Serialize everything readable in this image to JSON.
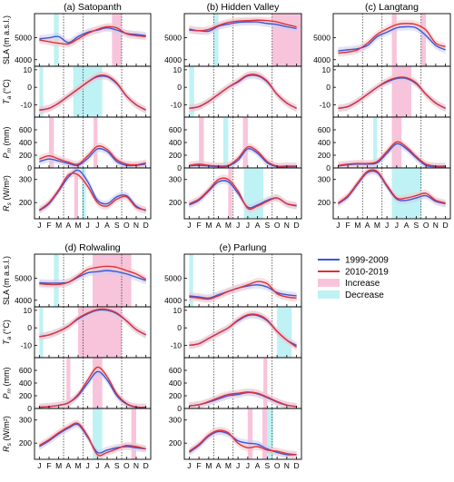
{
  "figure": {
    "legend": {
      "items": [
        {
          "label": "1999-2009",
          "kind": "line",
          "color": "#3b57d9"
        },
        {
          "label": "2010-2019",
          "kind": "line",
          "color": "#e0303a"
        },
        {
          "label": "Increase",
          "kind": "patch",
          "color": "#f8c4dc"
        },
        {
          "label": "Decrease",
          "kind": "patch",
          "color": "#bff2f4"
        }
      ]
    },
    "row_labels": {
      "sla": "SLA (m a.s.l.)",
      "ta_main": "T",
      "ta_sub": "a",
      "ta_unit": " (°C)",
      "pm_main": "P",
      "pm_sub": "m",
      "pm_unit": " (mm)",
      "rs_main": "R",
      "rs_sub": "s",
      "rs_unit": " (W/m²)"
    },
    "month_labels": [
      "J",
      "F",
      "M",
      "A",
      "M",
      "J",
      "J",
      "A",
      "S",
      "O",
      "N",
      "D"
    ],
    "colors": {
      "series_old": "#3b57d9",
      "series_new": "#e0303a",
      "band_old": "#c9cff3",
      "band_new": "#f6c6c8",
      "increase": "#f8c4dc",
      "decrease": "#bff2f4"
    }
  },
  "chart_data": [
    {
      "type": "line",
      "title": "(a) Satopanth",
      "x": [
        1,
        2,
        3,
        4,
        5,
        6,
        7,
        8,
        9,
        10,
        11,
        12
      ],
      "panels": {
        "sla": {
          "ylim": [
            3700,
            6100
          ],
          "ticks": [
            4000,
            5000
          ],
          "s1": [
            4950,
            5000,
            5050,
            4780,
            5050,
            5250,
            5350,
            5450,
            5350,
            5200,
            5150,
            5100
          ],
          "s2": [
            4900,
            4820,
            4750,
            4720,
            4950,
            5200,
            5380,
            5500,
            5450,
            5180,
            5100,
            5050
          ],
          "inc": [
            [
              8.5,
              9.5
            ]
          ],
          "dec": [
            [
              2.5,
              3.0
            ]
          ]
        },
        "ta": {
          "ylim": [
            -17,
            12
          ],
          "ticks": [
            -10,
            0,
            10
          ],
          "s1": [
            -13,
            -12,
            -9,
            -5,
            -1,
            3,
            6,
            6,
            2,
            -5,
            -10,
            -13
          ],
          "s2": [
            -13,
            -12,
            -9,
            -5,
            -1,
            3,
            6.5,
            6.5,
            2.5,
            -5,
            -10,
            -13
          ],
          "inc": [],
          "dec": [
            [
              1.0,
              1.4
            ],
            [
              4.5,
              7.5
            ]
          ]
        },
        "pm": {
          "ylim": [
            0,
            800
          ],
          "ticks": [
            0,
            200,
            400,
            600
          ],
          "s1": [
            100,
            140,
            110,
            70,
            40,
            150,
            300,
            260,
            100,
            40,
            40,
            60
          ],
          "s2": [
            140,
            190,
            140,
            90,
            60,
            190,
            340,
            290,
            130,
            60,
            50,
            80
          ],
          "inc": [
            [
              2.0,
              2.5
            ],
            [
              6.6,
              7.0
            ]
          ],
          "dec": []
        },
        "rs": {
          "ylim": [
            130,
            350
          ],
          "ticks": [
            200,
            300
          ],
          "s1": [
            165,
            195,
            250,
            310,
            340,
            290,
            210,
            195,
            225,
            230,
            185,
            165
          ],
          "s2": [
            168,
            200,
            255,
            320,
            320,
            270,
            200,
            185,
            215,
            225,
            180,
            168
          ],
          "inc": [
            [
              4.6,
              5.0
            ]
          ],
          "dec": [
            [
              5.4,
              5.8
            ]
          ]
        }
      }
    },
    {
      "type": "line",
      "title": "(b) Hidden Valley",
      "x": [
        1,
        2,
        3,
        4,
        5,
        6,
        7,
        8,
        9,
        10,
        11,
        12
      ],
      "panels": {
        "sla": {
          "ylim": [
            3700,
            6100
          ],
          "ticks": [
            4000,
            5000
          ],
          "s1": [
            5350,
            5320,
            5300,
            5520,
            5620,
            5700,
            5720,
            5720,
            5650,
            5600,
            5500,
            5420
          ],
          "s2": [
            5400,
            5320,
            5380,
            5560,
            5700,
            5760,
            5780,
            5800,
            5780,
            5720,
            5600,
            5500
          ],
          "inc": [
            [
              9.5,
              12.5
            ]
          ],
          "dec": [
            [
              3.5,
              4.0
            ]
          ]
        },
        "ta": {
          "ylim": [
            -17,
            12
          ],
          "ticks": [
            -10,
            0,
            10
          ],
          "s1": [
            -12,
            -11,
            -8,
            -4,
            0,
            3,
            6.5,
            6.5,
            3,
            -4,
            -9,
            -12
          ],
          "s2": [
            -12,
            -11,
            -8,
            -4,
            0,
            3.5,
            7,
            7,
            3.5,
            -4,
            -9,
            -12
          ],
          "inc": [],
          "dec": [
            [
              1.0,
              1.5
            ]
          ]
        },
        "pm": {
          "ylim": [
            0,
            800
          ],
          "ticks": [
            0,
            200,
            400,
            600
          ],
          "s1": [
            30,
            40,
            30,
            20,
            30,
            120,
            300,
            230,
            80,
            20,
            20,
            20
          ],
          "s2": [
            40,
            60,
            40,
            30,
            40,
            150,
            330,
            260,
            100,
            30,
            30,
            30
          ],
          "inc": [
            [
              2.0,
              2.5
            ],
            [
              6.5,
              7.0
            ]
          ],
          "dec": [
            [
              4.5,
              5.0
            ]
          ]
        },
        "rs": {
          "ylim": [
            130,
            350
          ],
          "ticks": [
            200,
            300
          ],
          "s1": [
            190,
            210,
            250,
            290,
            290,
            240,
            180,
            190,
            210,
            220,
            195,
            185
          ],
          "s2": [
            195,
            215,
            255,
            300,
            300,
            250,
            175,
            185,
            205,
            220,
            195,
            188
          ],
          "inc": [
            [
              5.0,
              5.4
            ]
          ],
          "dec": [
            [
              6.6,
              8.6
            ]
          ]
        }
      }
    },
    {
      "type": "line",
      "title": "(c) Langtang",
      "x": [
        1,
        2,
        3,
        4,
        5,
        6,
        7,
        8,
        9,
        10,
        11,
        12
      ],
      "panels": {
        "sla": {
          "ylim": [
            3700,
            6100
          ],
          "ticks": [
            4000,
            5000
          ],
          "s1": [
            4400,
            4450,
            4500,
            4650,
            5050,
            5250,
            5450,
            5500,
            5450,
            5100,
            4650,
            4450
          ],
          "s2": [
            4300,
            4350,
            4450,
            4750,
            5150,
            5400,
            5600,
            5650,
            5600,
            5350,
            4750,
            4600
          ],
          "inc": [
            [
              6.5,
              7.0
            ],
            [
              9.5,
              10.0
            ]
          ],
          "dec": []
        },
        "ta": {
          "ylim": [
            -17,
            12
          ],
          "ticks": [
            -10,
            0,
            10
          ],
          "s1": [
            -12,
            -11,
            -8,
            -4,
            0,
            3,
            5,
            5,
            2,
            -4,
            -9,
            -12
          ],
          "s2": [
            -12,
            -11,
            -8,
            -4,
            0,
            3.5,
            5.5,
            5.5,
            2.5,
            -4,
            -9,
            -12
          ],
          "inc": [
            [
              6.5,
              8.5
            ]
          ],
          "dec": []
        },
        "pm": {
          "ylim": [
            0,
            800
          ],
          "ticks": [
            0,
            200,
            400,
            600
          ],
          "s1": [
            30,
            50,
            60,
            60,
            80,
            230,
            380,
            300,
            160,
            40,
            20,
            20
          ],
          "s2": [
            40,
            60,
            70,
            70,
            100,
            260,
            410,
            330,
            180,
            60,
            30,
            30
          ],
          "inc": [
            [
              6.5,
              7.5
            ]
          ],
          "dec": [
            [
              4.6,
              5.0
            ]
          ]
        },
        "rs": {
          "ylim": [
            130,
            350
          ],
          "ticks": [
            200,
            300
          ],
          "s1": [
            195,
            225,
            280,
            330,
            330,
            270,
            215,
            210,
            220,
            230,
            205,
            195
          ],
          "s2": [
            198,
            230,
            285,
            335,
            335,
            275,
            220,
            220,
            230,
            240,
            210,
            198
          ],
          "inc": [],
          "dec": [
            [
              6.5,
              9.5
            ]
          ]
        }
      }
    },
    {
      "type": "line",
      "title": "(d) Rolwaling",
      "x": [
        1,
        2,
        3,
        4,
        5,
        6,
        7,
        8,
        9,
        10,
        11,
        12
      ],
      "panels": {
        "sla": {
          "ylim": [
            3700,
            6100
          ],
          "ticks": [
            4000,
            5000
          ],
          "s1": [
            4800,
            4780,
            4780,
            4820,
            5050,
            5250,
            5300,
            5350,
            5300,
            5200,
            5050,
            4900
          ],
          "s2": [
            4750,
            4720,
            4720,
            4820,
            5100,
            5400,
            5500,
            5550,
            5500,
            5350,
            5200,
            4950
          ],
          "inc": [
            [
              6.5,
              10.5
            ]
          ],
          "dec": [
            [
              2.5,
              3.0
            ]
          ]
        },
        "ta": {
          "ylim": [
            -17,
            12
          ],
          "ticks": [
            -10,
            0,
            10
          ],
          "s1": [
            -5,
            -4,
            -2,
            1,
            5,
            8,
            10,
            10,
            8,
            4,
            -1,
            -4
          ],
          "s2": [
            -5,
            -4,
            -2,
            1,
            5.5,
            8.5,
            10.5,
            10.5,
            8.5,
            4,
            -1,
            -4
          ],
          "inc": [
            [
              5.0,
              9.5
            ]
          ],
          "dec": [
            [
              1.0,
              1.4
            ]
          ]
        },
        "pm": {
          "ylim": [
            0,
            800
          ],
          "ticks": [
            0,
            200,
            400,
            600
          ],
          "s1": [
            20,
            30,
            50,
            90,
            200,
            400,
            580,
            450,
            200,
            70,
            20,
            20
          ],
          "s2": [
            20,
            30,
            50,
            90,
            220,
            450,
            650,
            500,
            230,
            80,
            25,
            20
          ],
          "inc": [
            [
              3.8,
              4.2
            ],
            [
              6.5,
              7.5
            ]
          ],
          "dec": []
        },
        "rs": {
          "ylim": [
            130,
            350
          ],
          "ticks": [
            200,
            300
          ],
          "s1": [
            185,
            210,
            240,
            265,
            280,
            225,
            160,
            170,
            180,
            185,
            180,
            175
          ],
          "s2": [
            190,
            215,
            245,
            270,
            285,
            230,
            150,
            160,
            175,
            190,
            185,
            175
          ],
          "inc": [
            [
              10.5,
              11.0
            ]
          ],
          "dec": [
            [
              6.5,
              7.5
            ]
          ]
        }
      }
    },
    {
      "type": "line",
      "title": "(e) Parlung",
      "x": [
        1,
        2,
        3,
        4,
        5,
        6,
        7,
        8,
        9,
        10,
        11,
        12
      ],
      "panels": {
        "sla": {
          "ylim": [
            3700,
            6100
          ],
          "ticks": [
            4000,
            5000
          ],
          "s1": [
            4200,
            4150,
            4100,
            4250,
            4400,
            4550,
            4650,
            4700,
            4600,
            4350,
            4250,
            4200
          ],
          "s2": [
            4150,
            4100,
            4050,
            4200,
            4400,
            4550,
            4700,
            4850,
            4750,
            4300,
            4150,
            4100
          ],
          "inc": [],
          "dec": [
            [
              1.0,
              1.4
            ]
          ]
        },
        "ta": {
          "ylim": [
            -17,
            12
          ],
          "ticks": [
            -10,
            0,
            10
          ],
          "s1": [
            -10,
            -9,
            -6,
            -3,
            0,
            4,
            7,
            7,
            4,
            -2,
            -7,
            -10
          ],
          "s2": [
            -10,
            -9,
            -6,
            -3,
            0,
            4.5,
            7.5,
            7.5,
            4.5,
            -2,
            -7,
            -11
          ],
          "inc": [],
          "dec": [
            [
              10.0,
              11.5
            ]
          ]
        },
        "pm": {
          "ylim": [
            0,
            800
          ],
          "ticks": [
            0,
            200,
            400,
            600
          ],
          "s1": [
            40,
            60,
            100,
            150,
            200,
            220,
            250,
            230,
            170,
            100,
            50,
            30
          ],
          "s2": [
            40,
            60,
            110,
            170,
            220,
            240,
            260,
            240,
            180,
            110,
            55,
            30
          ],
          "inc": [
            [
              8.6,
              9.0
            ]
          ],
          "dec": []
        },
        "rs": {
          "ylim": [
            130,
            350
          ],
          "ticks": [
            200,
            300
          ],
          "s1": [
            160,
            190,
            230,
            250,
            240,
            210,
            200,
            195,
            175,
            160,
            150,
            150
          ],
          "s2": [
            165,
            195,
            235,
            255,
            245,
            200,
            180,
            185,
            170,
            165,
            155,
            150
          ],
          "inc": [
            [
              7.0,
              7.5
            ],
            [
              8.5,
              9.0
            ]
          ],
          "dec": [
            [
              9.0,
              9.6
            ]
          ]
        }
      }
    }
  ]
}
